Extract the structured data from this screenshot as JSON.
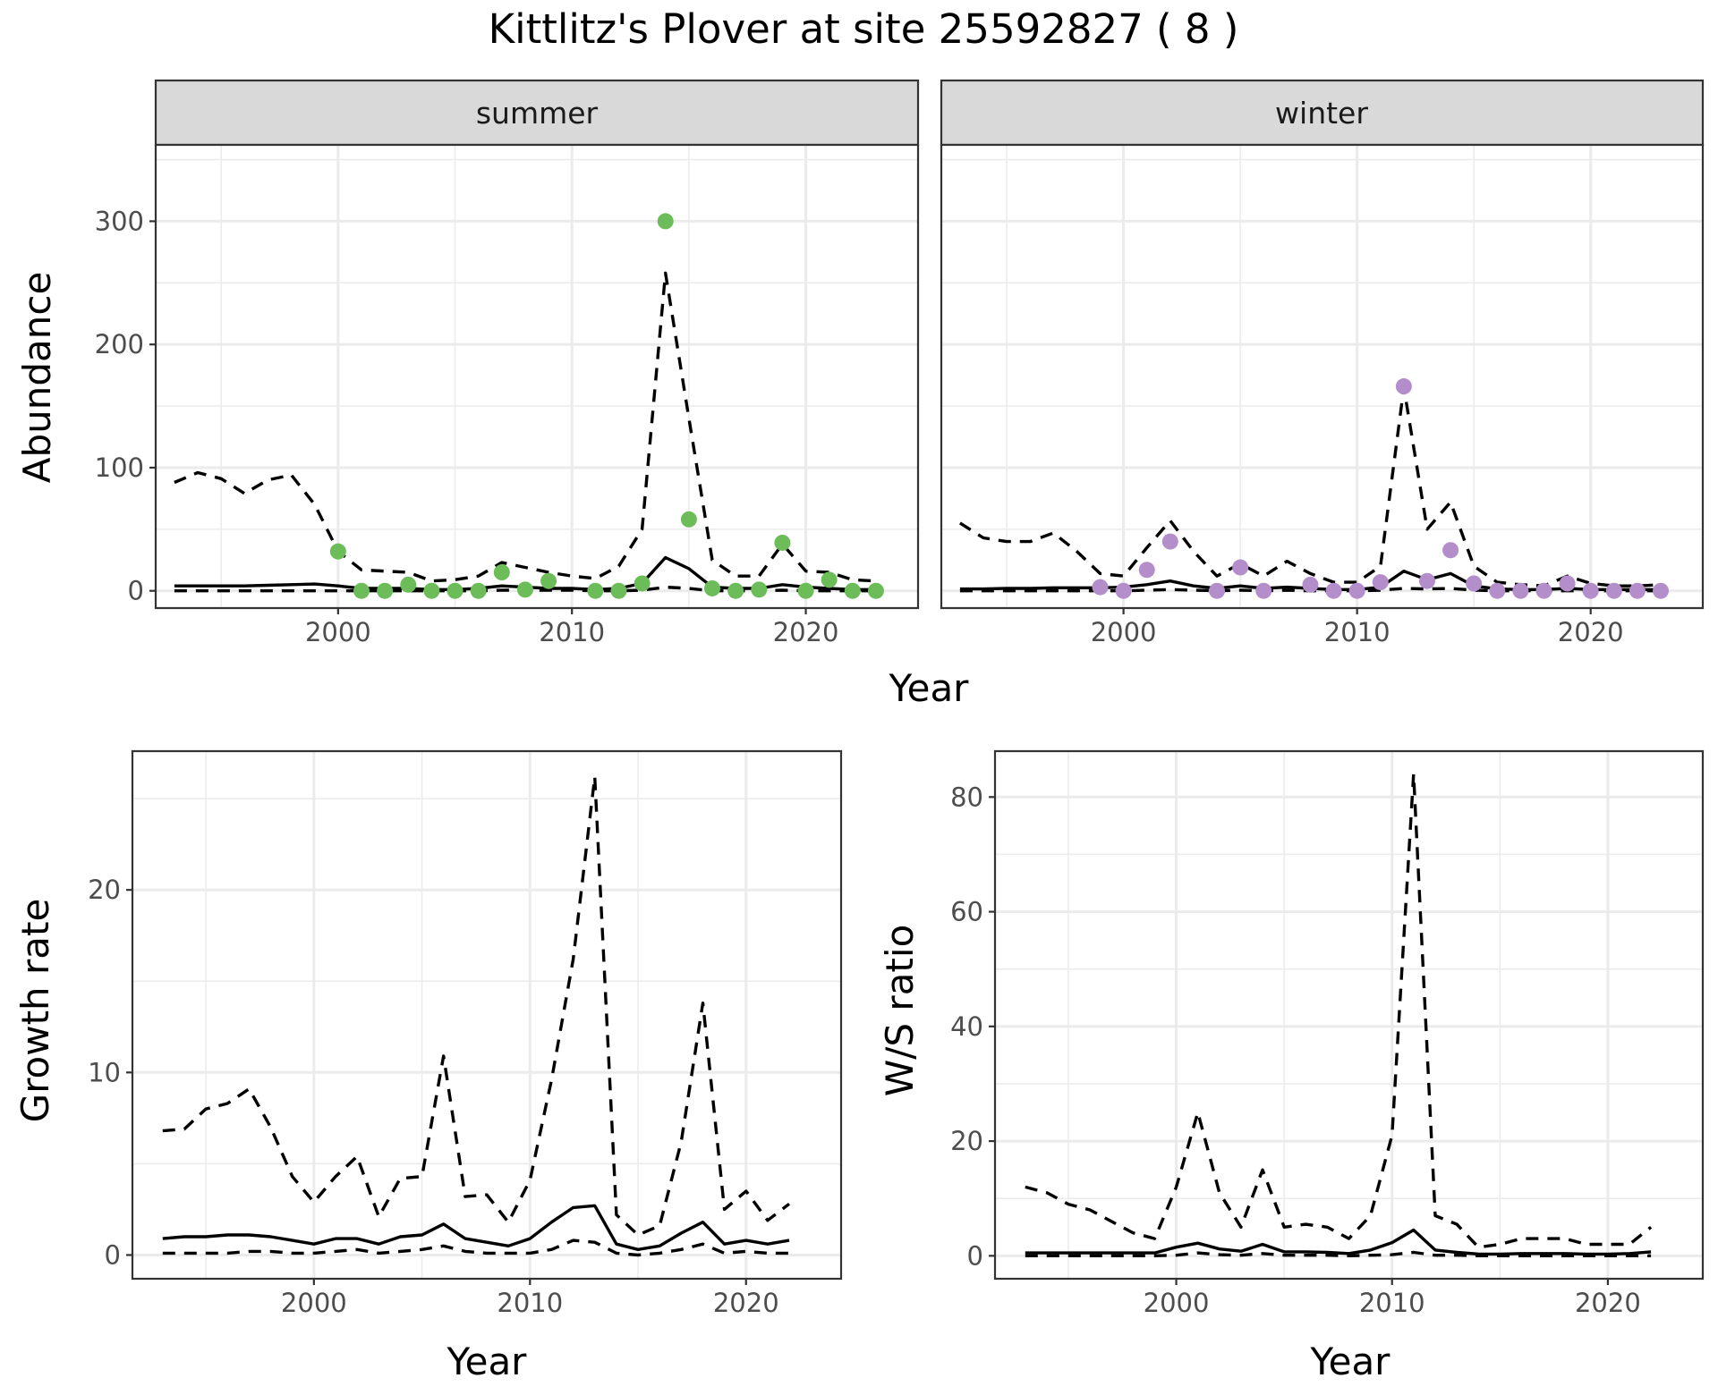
{
  "figure": {
    "title": "Kittlitz's Plover at site 25592827 ( 8 )"
  },
  "chart_data": [
    {
      "type": "line",
      "panel": "summer",
      "strip_label": "summer",
      "xlabel": "Year",
      "ylabel": "Abundance",
      "xlim": [
        1992.2,
        2024.8
      ],
      "ylim": [
        -14,
        362
      ],
      "x_ticks": [
        2000,
        2010,
        2020
      ],
      "y_ticks": [
        0,
        100,
        200,
        300
      ],
      "points_color": "#6cbd5a",
      "lines": {
        "x": [
          1993,
          1994,
          1995,
          1996,
          1997,
          1998,
          1999,
          2000,
          2001,
          2002,
          2003,
          2004,
          2005,
          2006,
          2007,
          2008,
          2009,
          2010,
          2011,
          2012,
          2013,
          2014,
          2015,
          2016,
          2017,
          2018,
          2019,
          2020,
          2021,
          2022,
          2023
        ],
        "upper": [
          88,
          96,
          91,
          79,
          90,
          94,
          70,
          32,
          17,
          16,
          15,
          8,
          9,
          12,
          23,
          19,
          15,
          12,
          10,
          20,
          50,
          258,
          140,
          25,
          12,
          12,
          38,
          16,
          15,
          9,
          8
        ],
        "mean": [
          4,
          4,
          4,
          4,
          4.5,
          5,
          5.5,
          4,
          2,
          2,
          2,
          1,
          1,
          2,
          4,
          3,
          2,
          2,
          1,
          2,
          6,
          27,
          18,
          3,
          2,
          2,
          5,
          3,
          2,
          1,
          1
        ],
        "lower": [
          0,
          0,
          0,
          0,
          0,
          0,
          0,
          0,
          0,
          0,
          0,
          0,
          0,
          0,
          0.5,
          0.5,
          0.5,
          0.5,
          0,
          0,
          0.5,
          3,
          2,
          0,
          0,
          0,
          0.5,
          0,
          0,
          0,
          0
        ]
      },
      "points": {
        "x": [
          2000,
          2001,
          2002,
          2003,
          2004,
          2005,
          2006,
          2007,
          2008,
          2009,
          2011,
          2012,
          2013,
          2014,
          2015,
          2016,
          2017,
          2018,
          2019,
          2020,
          2021,
          2022,
          2023
        ],
        "y": [
          32,
          0,
          0,
          5,
          0,
          0,
          0,
          15,
          1,
          8,
          0,
          0,
          6,
          300,
          58,
          2,
          0,
          1,
          39,
          0,
          9,
          0,
          0
        ]
      }
    },
    {
      "type": "line",
      "panel": "winter",
      "strip_label": "winter",
      "xlabel": "Year",
      "ylabel": "Abundance",
      "xlim": [
        1992.2,
        2024.8
      ],
      "ylim": [
        -14,
        362
      ],
      "x_ticks": [
        2000,
        2010,
        2020
      ],
      "y_ticks": [
        0,
        100,
        200,
        300
      ],
      "points_color": "#b48ecb",
      "lines": {
        "x": [
          1993,
          1994,
          1995,
          1996,
          1997,
          1998,
          1999,
          2000,
          2001,
          2002,
          2003,
          2004,
          2005,
          2006,
          2007,
          2008,
          2009,
          2010,
          2011,
          2012,
          2013,
          2014,
          2015,
          2016,
          2017,
          2018,
          2019,
          2020,
          2021,
          2022,
          2023
        ],
        "upper": [
          55,
          43,
          40,
          40,
          47,
          32,
          14,
          12,
          35,
          57,
          32,
          12,
          22,
          12,
          24,
          14,
          7,
          7,
          20,
          165,
          50,
          72,
          20,
          7,
          5,
          4,
          12,
          6,
          4,
          4,
          5
        ],
        "mean": [
          1.5,
          1.5,
          2,
          2,
          2.5,
          2.5,
          2.5,
          3,
          5,
          8,
          4,
          2,
          4,
          2,
          3,
          2,
          1,
          1,
          3,
          16,
          9,
          14,
          4,
          1.5,
          1,
          1,
          2,
          1,
          1,
          1,
          1
        ],
        "lower": [
          0,
          0,
          0,
          0,
          0,
          0,
          0,
          0,
          0.5,
          1,
          0.5,
          0,
          0.5,
          0,
          0.5,
          0,
          0,
          0,
          0.5,
          2,
          1.5,
          2,
          0.5,
          0,
          0,
          0,
          0,
          0,
          0,
          0,
          0
        ]
      },
      "points": {
        "x": [
          1999,
          2000,
          2001,
          2002,
          2004,
          2005,
          2006,
          2008,
          2009,
          2010,
          2011,
          2012,
          2013,
          2014,
          2015,
          2016,
          2017,
          2018,
          2019,
          2020,
          2021,
          2022,
          2023
        ],
        "y": [
          3,
          0,
          17,
          40,
          0,
          19,
          0,
          5,
          0,
          0,
          7,
          166,
          8,
          33,
          6,
          0,
          0,
          0,
          6,
          0,
          0,
          0,
          0
        ]
      }
    },
    {
      "type": "line",
      "panel": "growth",
      "xlabel": "Year",
      "ylabel": "Growth rate",
      "xlim": [
        1991.6,
        2024.4
      ],
      "ylim": [
        -1.3,
        27.6
      ],
      "x_ticks": [
        2000,
        2010,
        2020
      ],
      "y_ticks": [
        0,
        10,
        20
      ],
      "lines": {
        "x": [
          1993,
          1994,
          1995,
          1996,
          1997,
          1998,
          1999,
          2000,
          2001,
          2002,
          2003,
          2004,
          2005,
          2006,
          2007,
          2008,
          2009,
          2010,
          2011,
          2012,
          2013,
          2014,
          2015,
          2016,
          2017,
          2018,
          2019,
          2020,
          2021,
          2022
        ],
        "upper": [
          6.8,
          6.9,
          8,
          8.3,
          9.1,
          7,
          4.3,
          2.9,
          4.3,
          5.4,
          2.1,
          4.2,
          4.3,
          10.9,
          3.2,
          3.3,
          1.8,
          4.1,
          9.6,
          16.2,
          26.2,
          2.2,
          1.1,
          1.6,
          6.2,
          13.8,
          2.5,
          3.5,
          1.9,
          2.8
        ],
        "mean": [
          0.9,
          1,
          1,
          1.1,
          1.1,
          1,
          0.8,
          0.6,
          0.9,
          0.9,
          0.6,
          1,
          1.1,
          1.7,
          0.9,
          0.7,
          0.5,
          0.9,
          1.8,
          2.6,
          2.7,
          0.6,
          0.3,
          0.5,
          1.2,
          1.8,
          0.6,
          0.8,
          0.6,
          0.8
        ],
        "lower": [
          0.1,
          0.1,
          0.1,
          0.1,
          0.2,
          0.2,
          0.1,
          0.1,
          0.2,
          0.3,
          0.1,
          0.2,
          0.3,
          0.5,
          0.2,
          0.1,
          0.1,
          0.1,
          0.3,
          0.8,
          0.7,
          0.1,
          0,
          0.1,
          0.3,
          0.6,
          0.1,
          0.2,
          0.1,
          0.1
        ]
      }
    },
    {
      "type": "line",
      "panel": "ws_ratio",
      "xlabel": "Year",
      "ylabel": "W/S ratio",
      "xlim": [
        1991.6,
        2024.4
      ],
      "ylim": [
        -4,
        88
      ],
      "x_ticks": [
        2000,
        2010,
        2020
      ],
      "y_ticks": [
        0,
        20,
        40,
        60,
        80
      ],
      "lines": {
        "x": [
          1993,
          1994,
          1995,
          1996,
          1997,
          1998,
          1999,
          2000,
          2001,
          2002,
          2003,
          2004,
          2005,
          2006,
          2007,
          2008,
          2009,
          2010,
          2011,
          2012,
          2013,
          2014,
          2015,
          2016,
          2017,
          2018,
          2019,
          2020,
          2021,
          2022
        ],
        "upper": [
          12,
          11,
          9,
          8,
          6,
          4,
          3,
          12,
          25,
          11,
          5,
          15,
          5,
          5.5,
          5,
          3,
          7,
          21,
          84,
          7,
          5.5,
          1.5,
          2,
          3,
          3,
          3,
          2,
          2,
          2,
          5
        ],
        "mean": [
          0.5,
          0.5,
          0.5,
          0.5,
          0.5,
          0.5,
          0.5,
          1.5,
          2.2,
          1.2,
          0.8,
          2,
          0.7,
          0.7,
          0.6,
          0.4,
          1,
          2.3,
          4.5,
          1,
          0.6,
          0.3,
          0.3,
          0.4,
          0.4,
          0.4,
          0.3,
          0.3,
          0.4,
          0.7
        ],
        "lower": [
          0,
          0,
          0,
          0,
          0,
          0,
          0,
          0.1,
          0.5,
          0.2,
          0.1,
          0.4,
          0.1,
          0.1,
          0.1,
          0,
          0.1,
          0.2,
          0.6,
          0.1,
          0.1,
          0,
          0,
          0,
          0,
          0,
          0,
          0,
          0,
          0
        ]
      }
    }
  ]
}
